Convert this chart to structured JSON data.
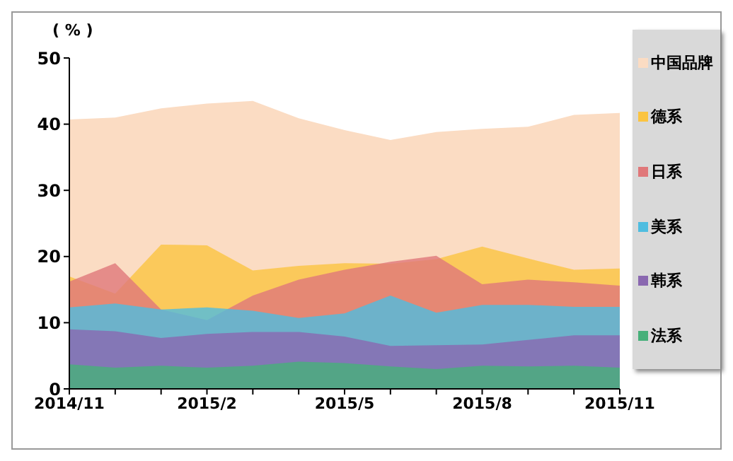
{
  "chart_data": {
    "type": "area",
    "ylabel": "( % )",
    "categories": [
      "2014/11",
      null,
      null,
      "2015/2",
      null,
      null,
      "2015/5",
      null,
      null,
      "2015/8",
      null,
      null,
      "2015/11"
    ],
    "ylim": [
      0,
      50
    ],
    "yticks": [
      0,
      10,
      20,
      30,
      40,
      50
    ],
    "grid": false,
    "legend": "right",
    "series": [
      {
        "name": "中国品牌",
        "color": "#fbdcc3",
        "values": [
          40.7,
          41.0,
          42.4,
          43.1,
          43.5,
          40.9,
          39.1,
          37.6,
          38.8,
          39.3,
          39.6,
          41.4,
          41.7
        ]
      },
      {
        "name": "德系",
        "color": "#fbc441",
        "values": [
          17.0,
          14.4,
          21.8,
          21.7,
          17.9,
          18.6,
          19.0,
          18.9,
          19.6,
          21.5,
          19.7,
          18.0,
          18.2
        ]
      },
      {
        "name": "日系",
        "color": "#e0787a",
        "values": [
          16.2,
          19.0,
          12.0,
          10.4,
          14.1,
          16.5,
          18.0,
          19.2,
          20.1,
          15.8,
          16.5,
          16.1,
          15.6
        ]
      },
      {
        "name": "美系",
        "color": "#4fbde0",
        "values": [
          12.3,
          12.9,
          12.0,
          12.3,
          11.8,
          10.7,
          11.4,
          14.1,
          11.5,
          12.7,
          12.7,
          12.4,
          12.4
        ]
      },
      {
        "name": "韩系",
        "color": "#8a68b0",
        "values": [
          9.0,
          8.7,
          7.7,
          8.3,
          8.6,
          8.6,
          7.9,
          6.5,
          6.6,
          6.7,
          7.4,
          8.1,
          8.1
        ]
      },
      {
        "name": "法系",
        "color": "#47b07a",
        "values": [
          3.7,
          3.2,
          3.5,
          3.2,
          3.5,
          4.1,
          3.9,
          3.4,
          3.0,
          3.5,
          3.4,
          3.5,
          3.2
        ]
      }
    ]
  }
}
